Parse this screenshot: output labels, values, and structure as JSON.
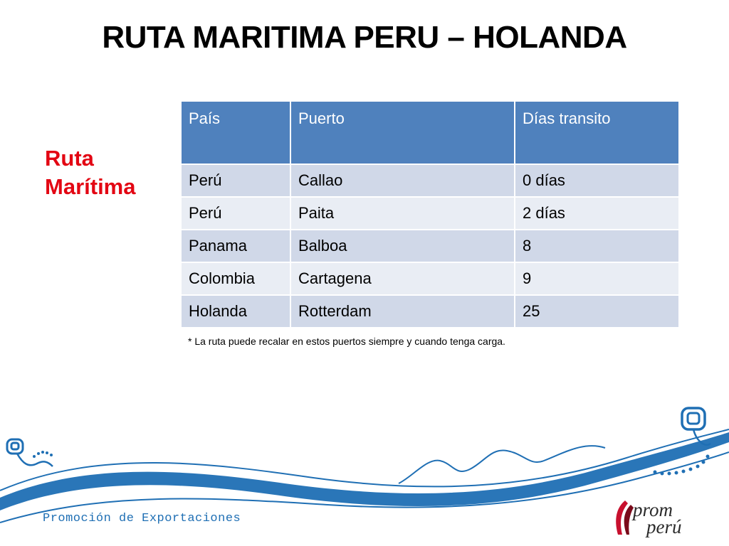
{
  "title": "RUTA MARITIMA PERU – HOLANDA",
  "side_label": {
    "line1": "Ruta",
    "line2": "Marítima"
  },
  "table": {
    "headers": [
      "País",
      "Puerto",
      "Días transito"
    ],
    "rows": [
      [
        "Perú",
        "Callao",
        "0 días"
      ],
      [
        "Perú",
        "Paita",
        "2 días"
      ],
      [
        "Panama",
        "Balboa",
        "8"
      ],
      [
        "Colombia",
        "Cartagena",
        "9"
      ],
      [
        "Holanda",
        "Rotterdam",
        "25"
      ]
    ]
  },
  "footnote": "* La ruta puede recalar en estos puertos siempre y cuando tenga carga.",
  "footer": {
    "text": "Promoción de Exportaciones"
  },
  "logo": {
    "line1": "prom",
    "line2": "perú"
  },
  "colors": {
    "title": "#000000",
    "side_label": "#e30613",
    "table_header": "#4f81bd",
    "row_odd": "#d0d8e8",
    "row_even": "#e9edf4",
    "decor_blue": "#1f6fb4",
    "logo_red": "#c8102e"
  }
}
